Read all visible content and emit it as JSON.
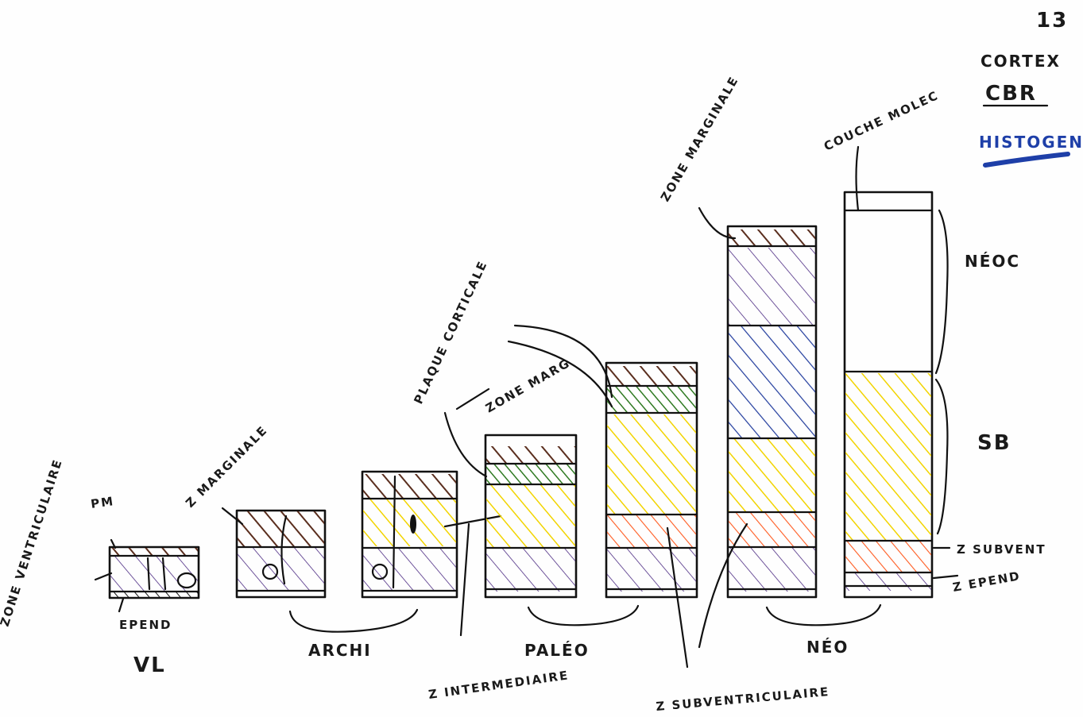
{
  "page_info": {
    "number": "13"
  },
  "header_legend": {
    "line1": "CORTEX",
    "line2": "CBR",
    "line3": "HISTOGEN"
  },
  "colors": {
    "ink": "#111111",
    "brown": "#5a2e1e",
    "purple": "#4b2a82",
    "blue": "#1f3a9c",
    "yellow": "#f2d400",
    "orange": "#ff5a1f",
    "green": "#2f7a22",
    "legend_blue": "#1e3fa8"
  },
  "labels": {
    "zone_ventriculaire": "ZONE VENTRICULAIRE",
    "pm": "PM",
    "epend_left": "EPEND",
    "vl": "VL",
    "z_marginale_1": "Z MARGINALE",
    "archi": "ARCHI",
    "plaque_corticale": "PLAQUE CORTICALE",
    "zone_marg": "ZONE MARG",
    "z_intermediaire": "Z INTERMEDIAIRE",
    "paleo": "PALÉO",
    "z_subventriculaire": "Z SUBVENTRICULAIRE",
    "zone_marginale_top": "ZONE MARGINALE",
    "couche_molec": "COUCHE MOLEC",
    "neoc": "NÉOC",
    "sb": "SB",
    "z_subvent": "Z SUBVENT",
    "z_epend": "Z EPEND",
    "neo": "NÉO"
  }
}
